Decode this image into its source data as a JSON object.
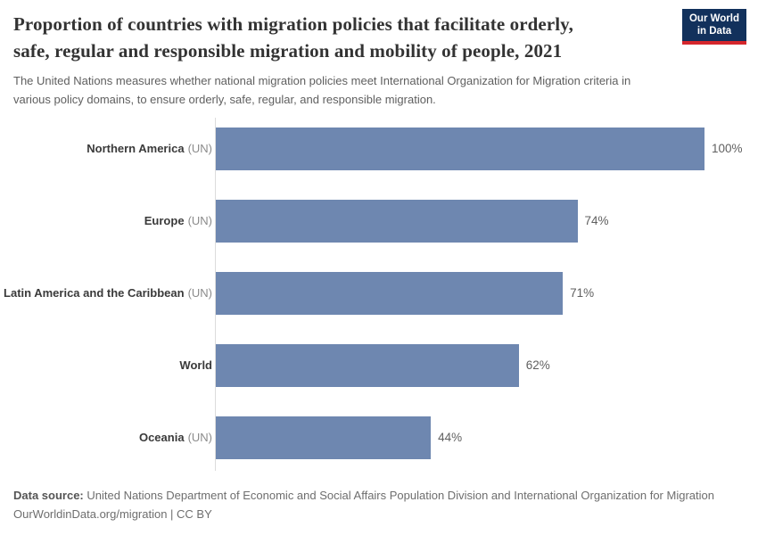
{
  "header": {
    "title": {
      "line1": "Proportion of countries with migration policies that facilitate orderly,",
      "line2": "safe, regular and responsible migration and mobility of people, 2021"
    },
    "subtitle": {
      "line1": "The United Nations measures whether national migration policies meet International Organization for Migration criteria in",
      "line2": "various policy domains, to ensure orderly, safe, regular, and responsible migration."
    },
    "logo": {
      "line1": "Our World",
      "line2": "in Data",
      "bg_color": "#12315c",
      "accent_color": "#d5262c",
      "text_color": "#ffffff"
    }
  },
  "chart_data": {
    "type": "bar",
    "orientation": "horizontal",
    "title": "Proportion of countries with migration policies that facilitate orderly, safe, regular and responsible migration and mobility of people, 2021",
    "categories": [
      "Northern America (UN)",
      "Europe (UN)",
      "Latin America and the Caribbean (UN)",
      "World",
      "Oceania (UN)"
    ],
    "values": [
      100,
      74,
      71,
      62,
      44
    ],
    "value_labels": [
      "100%",
      "74%",
      "71%",
      "62%",
      "44%"
    ],
    "unit": "%",
    "xlim": [
      0,
      100
    ],
    "bar_color": "#6e87b0",
    "axis_line_color": "#dcdcdc",
    "legend": "none",
    "grid": "off"
  },
  "footer": {
    "line1_label": "Data source:",
    "line1_text": "United Nations Department of Economic and Social Affairs Population Division and International Organization for Migration",
    "line2": "OurWorldinData.org/migration | CC BY"
  }
}
